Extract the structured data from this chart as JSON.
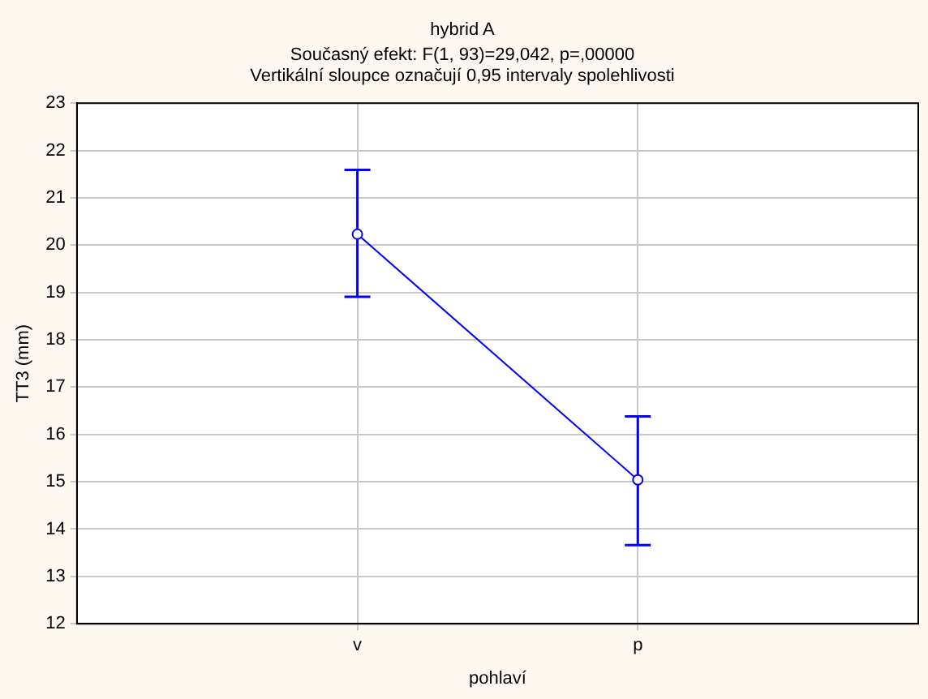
{
  "chart_data": {
    "type": "line",
    "title": "hybrid A",
    "subtitle": "Současný efekt: F(1, 93)=29,042, p=,00000",
    "annotations": [
      "Vertikální sloupce označují 0,95 intervaly spolehlivosti"
    ],
    "xlabel": "pohlaví",
    "ylabel": "TT3 (mm)",
    "categories": [
      "v",
      "p"
    ],
    "series": [
      {
        "color": "#0000ff",
        "values": [
          20.23,
          15.04
        ],
        "errors": [
          [
            18.91,
            21.59
          ],
          [
            13.66,
            16.38
          ]
        ]
      }
    ],
    "ylim": [
      12,
      23
    ],
    "yticks": [
      12,
      13,
      14,
      15,
      16,
      17,
      18,
      19,
      20,
      21,
      22,
      23
    ],
    "grid": true,
    "legend": false,
    "marker": "circle",
    "line_style": "solid"
  }
}
